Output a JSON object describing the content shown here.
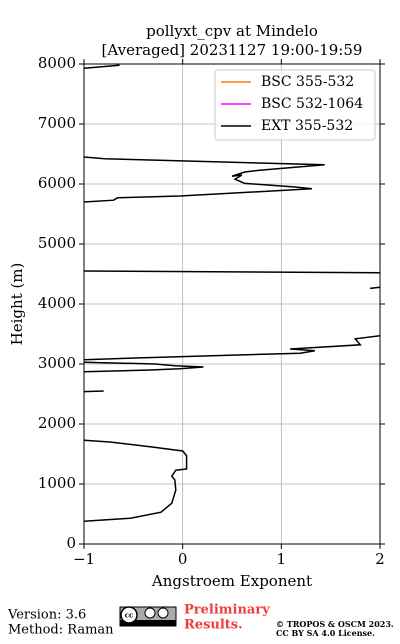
{
  "chart_data": {
    "type": "line",
    "title": [
      "pollyxt_cpv at Mindelo",
      "[Averaged] 20231127 19:00-19:59"
    ],
    "x_label": "Angstroem Exponent",
    "y_label": "Height (m)",
    "xlim": [
      -1,
      2
    ],
    "xticks": [
      {
        "value": -1,
        "label": "−1"
      },
      0,
      1,
      2
    ],
    "ylim": [
      0,
      8000
    ],
    "yticks": [
      0,
      1000,
      2000,
      3000,
      4000,
      5000,
      6000,
      7000,
      8000
    ],
    "grid": true,
    "legend": "upper right",
    "series": [
      {
        "name": "BSC 355-532",
        "color": "#ff7f0e",
        "x": [],
        "y": []
      },
      {
        "name": "BSC 532-1064",
        "color": "#ff00ff",
        "x": [],
        "y": []
      },
      {
        "name": "EXT 355-532",
        "color": "#000000",
        "x": [
          -1,
          -0.53,
          -0.22,
          -0.11,
          -0.07,
          -0.08,
          -0.11,
          -0.07,
          0.04,
          0.04,
          0,
          -0.33,
          -0.74,
          -1,
          null,
          -1,
          -0.8,
          null,
          -1,
          -0.33,
          -0.03,
          0.21,
          -0.08,
          -0.28,
          -1,
          null,
          -1,
          -0.48,
          1.19,
          1.34,
          1.09,
          1.8,
          1.75,
          2,
          null,
          1.9,
          2,
          null,
          2,
          -1,
          null,
          -1,
          -0.7,
          -0.66,
          -0.03,
          1.31,
          1.14,
          0.63,
          0.53,
          0.6,
          0.5,
          0.63,
          0.78,
          1.44,
          -0.79,
          -1,
          null,
          -1,
          -0.64
        ],
        "y": [
          380,
          430,
          530,
          680,
          900,
          1070,
          1130,
          1230,
          1250,
          1470,
          1550,
          1620,
          1700,
          1730,
          null,
          2540,
          2550,
          null,
          2870,
          2900,
          2920,
          2950,
          2970,
          3000,
          3030,
          null,
          3070,
          3100,
          3180,
          3220,
          3250,
          3320,
          3420,
          3470,
          null,
          4260,
          4280,
          null,
          4520,
          4550,
          null,
          5700,
          5730,
          5770,
          5800,
          5920,
          5950,
          6010,
          6080,
          6150,
          6130,
          6200,
          6230,
          6320,
          6420,
          6450,
          null,
          7930,
          7980
        ]
      }
    ]
  },
  "footer": {
    "version": "Version: 3.6",
    "method": "Method: Raman",
    "note": [
      "Preliminary",
      "Results."
    ],
    "copyright": [
      "© TROPOS & OSCM 2023.",
      "CC BY SA 4.0 License."
    ]
  }
}
